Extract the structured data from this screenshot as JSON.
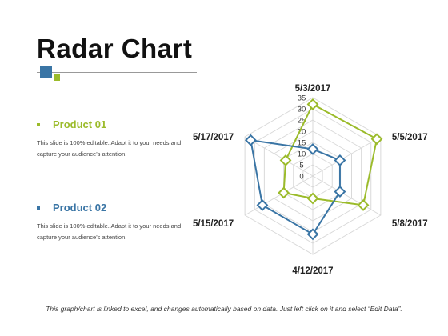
{
  "title": "Radar Chart",
  "footer": "This graph/chart is linked to excel, and changes automatically based on data. Just left click on it and select “Edit Data”.",
  "colors": {
    "blue": "#3a75a5",
    "green": "#9bbb2a",
    "grid": "#d9d9d9"
  },
  "legend": [
    {
      "name": "Product 01",
      "color": "#9bbb2a",
      "desc": "This slide is 100% editable. Adapt it to your needs and capture your audience's attention."
    },
    {
      "name": "Product 02",
      "color": "#3a75a5",
      "desc": "This slide is 100% editable. Adapt it to your needs and capture your audience's attention."
    }
  ],
  "chart_data": {
    "type": "radar",
    "categories": [
      "5/3/2017",
      "5/5/2017",
      "5/8/2017",
      "4/12/2017",
      "5/15/2017",
      "5/17/2017"
    ],
    "r_range": [
      0,
      35
    ],
    "r_ticks": [
      0,
      5,
      10,
      15,
      20,
      25,
      30,
      35
    ],
    "grid": true,
    "series": [
      {
        "name": "Product 01",
        "color": "#9bbb2a",
        "values": [
          32,
          33,
          26,
          10,
          15,
          14
        ]
      },
      {
        "name": "Product 02",
        "color": "#3a75a5",
        "values": [
          12,
          14,
          14,
          26,
          26,
          32
        ]
      }
    ]
  }
}
